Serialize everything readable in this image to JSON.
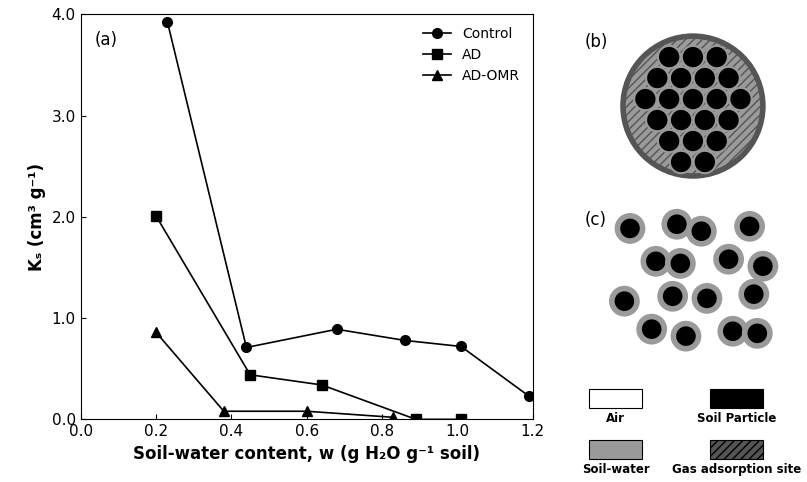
{
  "chart_data": {
    "type": "line",
    "annotations": [
      {
        "text": "(a)"
      }
    ],
    "x_label": "Soil-water content, w (g H₂O g⁻¹ soil)",
    "y_label": "Kₛ (cm³ g⁻¹)",
    "xlim": [
      0.0,
      1.2
    ],
    "xticks": [
      0.0,
      0.2,
      0.4,
      0.6,
      0.8,
      1.0,
      1.2
    ],
    "ylim": [
      0.0,
      4.0
    ],
    "yticks": [
      0.0,
      1.0,
      2.0,
      3.0,
      4.0
    ],
    "legend": "upper right",
    "series": [
      {
        "name": "Control",
        "color": "#000000",
        "marker": "circle",
        "line_style": "solid",
        "x": [
          0.23,
          0.44,
          0.68,
          0.86,
          1.01,
          1.19
        ],
        "values": [
          3.93,
          0.71,
          0.89,
          0.78,
          0.72,
          0.23
        ]
      },
      {
        "name": "AD",
        "color": "#000000",
        "marker": "square",
        "line_style": "solid",
        "x": [
          0.2,
          0.45,
          0.64,
          0.89,
          1.01
        ],
        "values": [
          2.01,
          0.44,
          0.34,
          0.0,
          0.0
        ]
      },
      {
        "name": "AD-OMR",
        "color": "#000000",
        "marker": "triangle",
        "line_style": "solid",
        "x": [
          0.2,
          0.38,
          0.6,
          0.83
        ],
        "values": [
          0.86,
          0.08,
          0.08,
          0.02
        ]
      }
    ]
  },
  "diagram": {
    "panels": [
      {
        "label": "(b)"
      },
      {
        "label": "(c)"
      }
    ],
    "legend": [
      {
        "label": "Air",
        "color": "#ffffff"
      },
      {
        "label": "Soil Particle",
        "color": "#000000"
      },
      {
        "label": "Soil-water",
        "color": "#9a9a9a"
      },
      {
        "label": "Gas adsorption site",
        "color": "#555555"
      }
    ]
  }
}
